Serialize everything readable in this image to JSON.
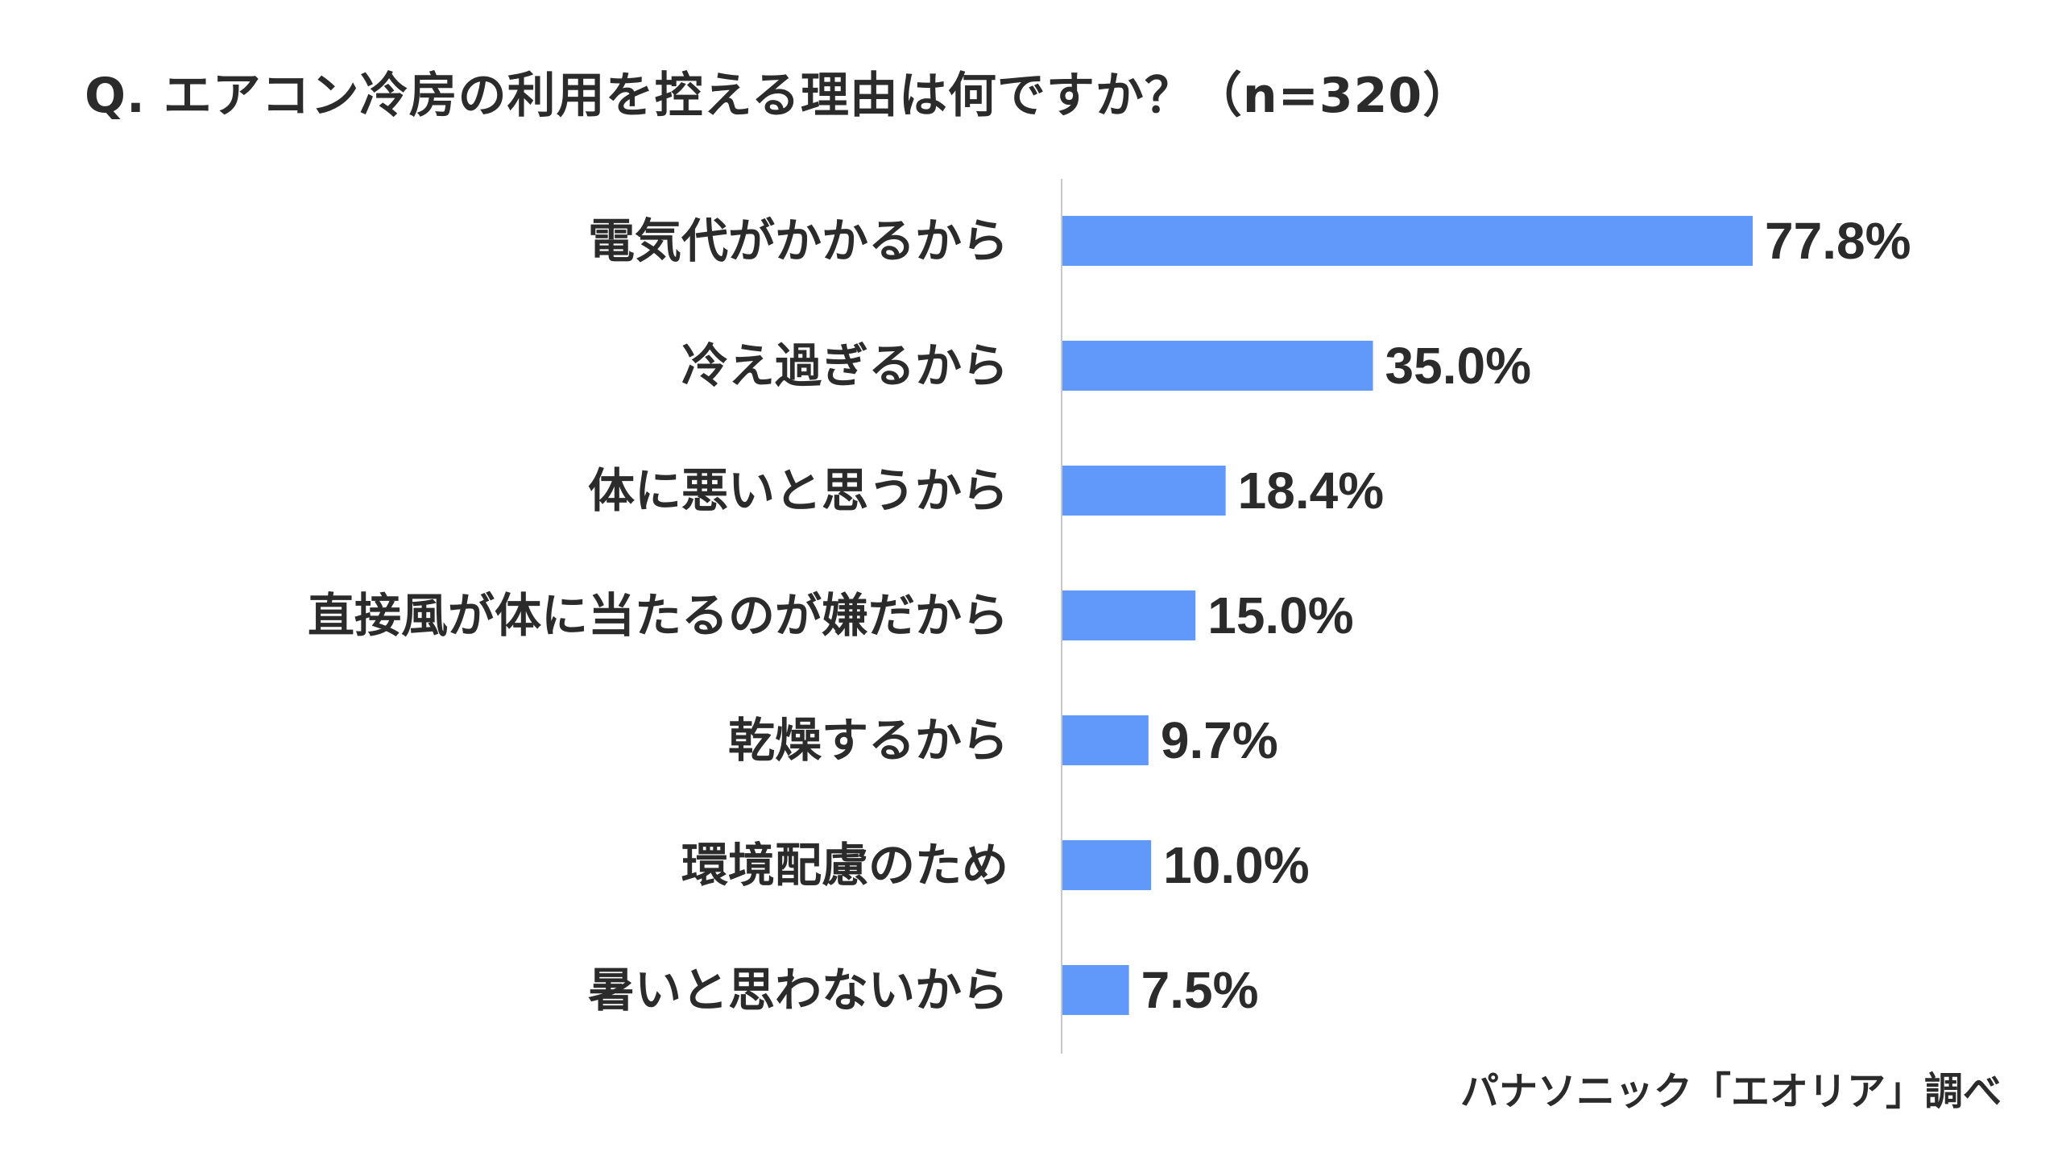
{
  "chart_data": {
    "type": "bar",
    "orientation": "horizontal",
    "title": "Q. エアコン冷房の利用を控える理由は何ですか？（n=320）",
    "categories": [
      "電気代がかかるから",
      "冷え過ぎるから",
      "体に悪いと思うから",
      "直接風が体に当たるのが嫌だから",
      "乾燥するから",
      "環境配慮のため",
      "暑いと思わないから"
    ],
    "values": [
      77.8,
      35.0,
      18.4,
      15.0,
      9.7,
      10.0,
      7.5
    ],
    "data_labels": [
      "77.8%",
      "35.0%",
      "18.4%",
      "15.0%",
      "9.7%",
      "10.0%",
      "7.5%"
    ],
    "unit": "%",
    "xlim": [
      0,
      100
    ],
    "grid": false,
    "legend": "none",
    "bar_color": "#6199fb",
    "axis_color": "#c8c8c8",
    "text_color": "#2b2b2b"
  },
  "source": "パナソニック「エオリア」調べ"
}
